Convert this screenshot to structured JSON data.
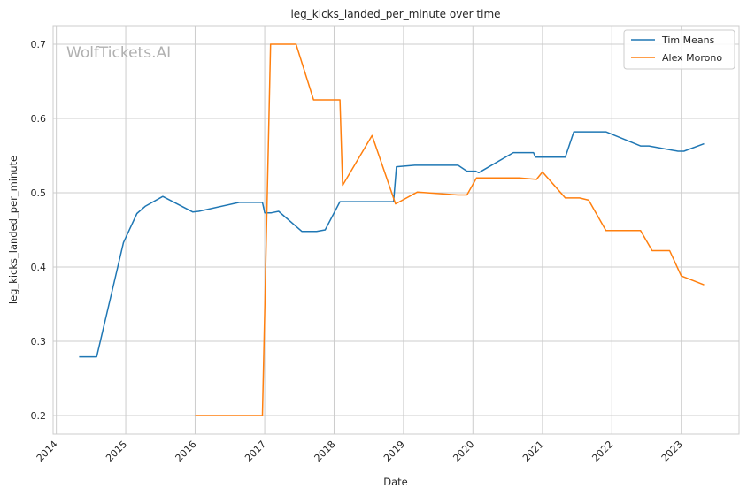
{
  "chart_data": {
    "type": "line",
    "title": "leg_kicks_landed_per_minute over time",
    "xlabel": "Date",
    "ylabel": "leg_kicks_landed_per_minute",
    "watermark": "WolfTickets.AI",
    "x_ticks": [
      "2014",
      "2015",
      "2016",
      "2017",
      "2018",
      "2019",
      "2020",
      "2021",
      "2022",
      "2023"
    ],
    "y_ticks": [
      "0.2",
      "0.3",
      "0.4",
      "0.5",
      "0.6",
      "0.7"
    ],
    "xlim": [
      "2013-12-15",
      "2023-11-01"
    ],
    "ylim": [
      0.175,
      0.725
    ],
    "grid": true,
    "legend_position": "top-right",
    "series": [
      {
        "name": "Tim Means",
        "color": "#1f77b4",
        "points": [
          [
            "2014-05-01",
            0.279
          ],
          [
            "2014-08-01",
            0.279
          ],
          [
            "2014-12-20",
            0.433
          ],
          [
            "2015-03-01",
            0.472
          ],
          [
            "2015-04-15",
            0.482
          ],
          [
            "2015-07-15",
            0.495
          ],
          [
            "2015-12-20",
            0.474
          ],
          [
            "2016-01-20",
            0.475
          ],
          [
            "2016-08-20",
            0.487
          ],
          [
            "2016-12-20",
            0.487
          ],
          [
            "2017-01-01",
            0.473
          ],
          [
            "2017-02-05",
            0.473
          ],
          [
            "2017-03-15",
            0.475
          ],
          [
            "2017-07-15",
            0.448
          ],
          [
            "2017-10-01",
            0.448
          ],
          [
            "2017-11-15",
            0.45
          ],
          [
            "2018-02-01",
            0.488
          ],
          [
            "2018-11-10",
            0.488
          ],
          [
            "2018-11-25",
            0.535
          ],
          [
            "2019-03-01",
            0.537
          ],
          [
            "2019-10-15",
            0.537
          ],
          [
            "2019-12-01",
            0.529
          ],
          [
            "2020-01-15",
            0.529
          ],
          [
            "2020-02-01",
            0.527
          ],
          [
            "2020-08-01",
            0.554
          ],
          [
            "2020-11-15",
            0.554
          ],
          [
            "2020-11-25",
            0.548
          ],
          [
            "2021-05-01",
            0.548
          ],
          [
            "2021-06-15",
            0.582
          ],
          [
            "2021-12-01",
            0.582
          ],
          [
            "2022-06-01",
            0.563
          ],
          [
            "2022-07-15",
            0.563
          ],
          [
            "2022-12-15",
            0.556
          ],
          [
            "2023-01-15",
            0.556
          ],
          [
            "2023-05-01",
            0.566
          ]
        ]
      },
      {
        "name": "Alex Morono",
        "color": "#ff7f0e",
        "points": [
          [
            "2016-01-01",
            0.2
          ],
          [
            "2016-12-20",
            0.2
          ],
          [
            "2017-02-01",
            0.7
          ],
          [
            "2017-06-15",
            0.7
          ],
          [
            "2017-09-15",
            0.625
          ],
          [
            "2018-02-01",
            0.625
          ],
          [
            "2018-02-15",
            0.51
          ],
          [
            "2018-07-20",
            0.577
          ],
          [
            "2018-11-20",
            0.485
          ],
          [
            "2019-03-15",
            0.501
          ],
          [
            "2019-10-15",
            0.497
          ],
          [
            "2019-12-01",
            0.497
          ],
          [
            "2020-01-20",
            0.52
          ],
          [
            "2020-09-01",
            0.52
          ],
          [
            "2020-12-01",
            0.518
          ],
          [
            "2021-01-01",
            0.528
          ],
          [
            "2021-05-01",
            0.493
          ],
          [
            "2021-07-15",
            0.493
          ],
          [
            "2021-09-01",
            0.49
          ],
          [
            "2021-12-01",
            0.449
          ],
          [
            "2022-06-01",
            0.449
          ],
          [
            "2022-08-01",
            0.422
          ],
          [
            "2022-11-01",
            0.422
          ],
          [
            "2023-01-01",
            0.388
          ],
          [
            "2023-05-01",
            0.376
          ]
        ]
      }
    ]
  }
}
